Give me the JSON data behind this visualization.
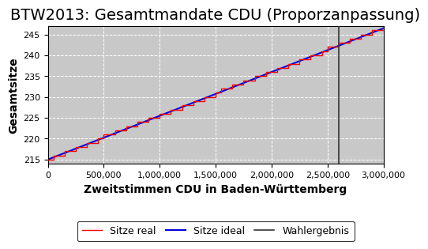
{
  "title": "BTW2013: Gesamtmandate CDU (Proporzanpassung)",
  "xlabel": "Zweitstimmen CDU in Baden-Württemberg",
  "ylabel": "Gesamtsitze",
  "xlim": [
    0,
    3000000
  ],
  "ylim": [
    214,
    247
  ],
  "yticks": [
    215,
    220,
    225,
    230,
    235,
    240,
    245
  ],
  "xticks": [
    0,
    500000,
    1000000,
    1500000,
    2000000,
    2500000,
    3000000
  ],
  "xtick_labels": [
    "0",
    "500,000",
    "1,000,000",
    "1,500,000",
    "2,000,000",
    "2,500,000",
    "3,000,000"
  ],
  "x_start": 0,
  "x_end": 3000000,
  "y_ideal_start": 215.0,
  "y_ideal_end": 246.5,
  "wahlergebnis_x": 2600000,
  "steps": 60,
  "color_real": "#ff0000",
  "color_ideal": "#0000dd",
  "color_wahlergebnis": "#333333",
  "bg_color": "#c8c8c8",
  "legend_entries": [
    "Sitze real",
    "Sitze ideal",
    "Wahlergebnis"
  ],
  "title_fontsize": 14,
  "axis_label_fontsize": 10,
  "tick_fontsize": 8,
  "legend_fontsize": 9
}
